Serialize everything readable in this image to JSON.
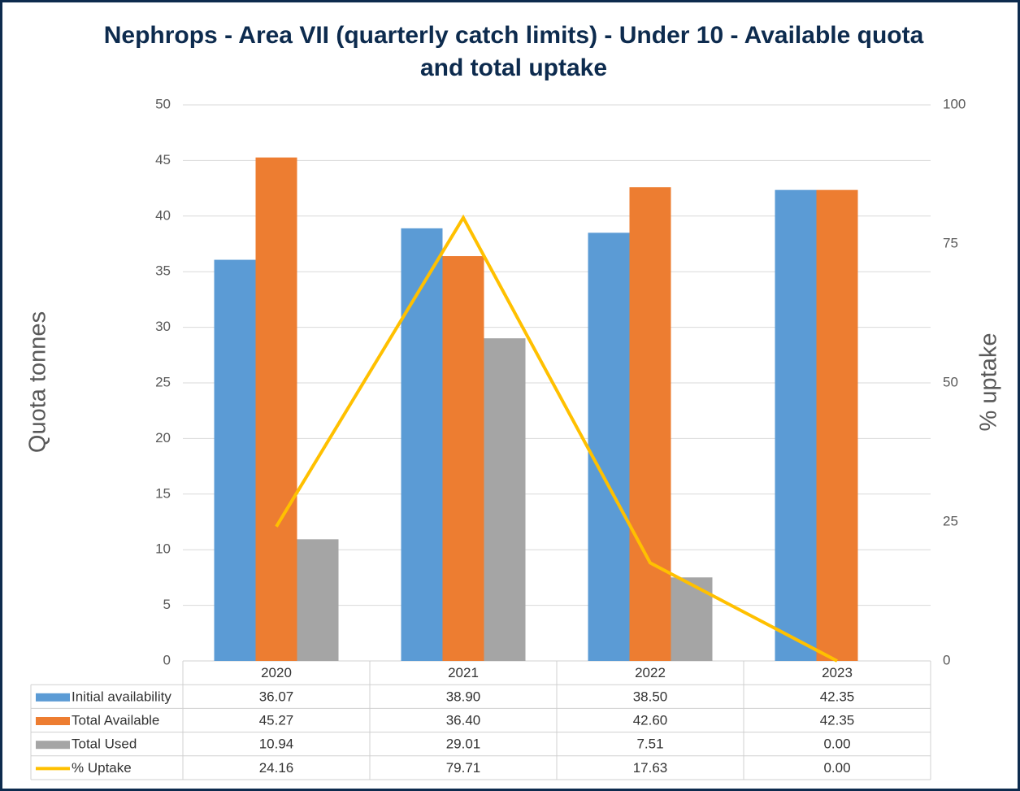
{
  "chart_data": {
    "type": "bar",
    "title": "Nephrops - Area VII (quarterly catch limits) - Under 10 - Available quota and total uptake",
    "y_label": "Quota tonnes",
    "y2_label": "% uptake",
    "categories": [
      "2020",
      "2021",
      "2022",
      "2023"
    ],
    "series": [
      {
        "name": "Initial availability",
        "color": "#5b9bd5",
        "type": "bar",
        "values": [
          36.07,
          38.9,
          38.5,
          42.35
        ],
        "value_labels": [
          "36.07",
          "38.90",
          "38.50",
          "42.35"
        ]
      },
      {
        "name": "Total Available",
        "color": "#ed7d31",
        "type": "bar",
        "values": [
          45.27,
          36.4,
          42.6,
          42.35
        ],
        "value_labels": [
          "45.27",
          "36.40",
          "42.60",
          "42.35"
        ]
      },
      {
        "name": "Total Used",
        "color": "#a5a5a5",
        "type": "bar",
        "values": [
          10.94,
          29.01,
          7.51,
          0
        ],
        "value_labels": [
          "10.94",
          "29.01",
          "7.51",
          "0.00"
        ]
      },
      {
        "name": "% Uptake",
        "color": "#ffc000",
        "type": "line",
        "axis": "y2",
        "values": [
          24.16,
          79.71,
          17.63,
          0
        ],
        "value_labels": [
          "24.16",
          "79.71",
          "17.63",
          "0.00"
        ]
      }
    ],
    "ylim": [
      0,
      50
    ],
    "yticks": [
      0,
      5,
      10,
      15,
      20,
      25,
      30,
      35,
      40,
      45,
      50
    ],
    "y2lim": [
      0,
      100
    ],
    "y2ticks": [
      0,
      25,
      50,
      75,
      100
    ],
    "grid": true
  }
}
